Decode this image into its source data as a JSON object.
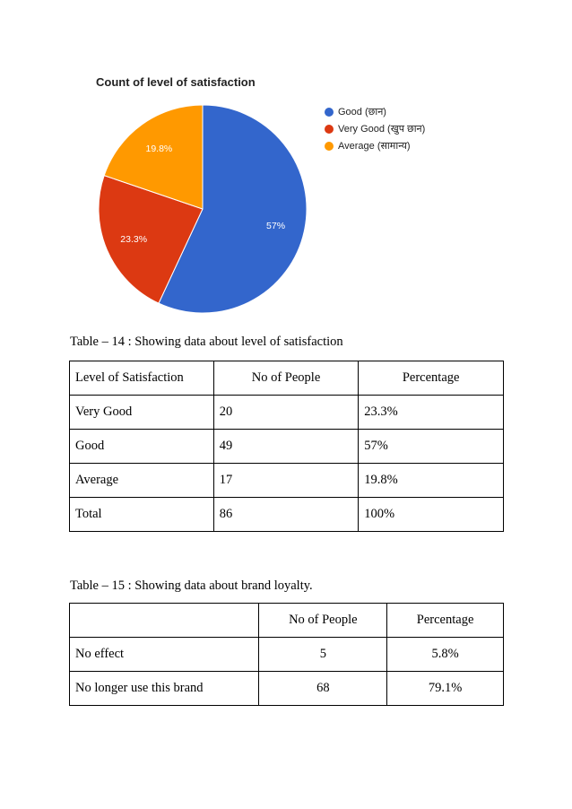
{
  "chart_data": {
    "type": "pie",
    "title": "Count of level of satisfaction",
    "slices": [
      {
        "label": "Good (छान)",
        "value": 57,
        "display": "57%",
        "color": "#3366cc"
      },
      {
        "label": "Very Good (खुप छान)",
        "value": 23.3,
        "display": "23.3%",
        "color": "#dc3912"
      },
      {
        "label": "Average (सामान्य)",
        "value": 19.8,
        "display": "19.8%",
        "color": "#ff9900"
      }
    ],
    "legend_position": "right"
  },
  "table14": {
    "caption": "Table – 14 : Showing data about level of satisfaction",
    "headers": [
      "Level of Satisfaction",
      "No of People",
      "Percentage"
    ],
    "rows": [
      [
        "Very Good",
        "20",
        "23.3%"
      ],
      [
        "Good",
        "49",
        "57%"
      ],
      [
        "Average",
        "17",
        "19.8%"
      ],
      [
        "Total",
        "86",
        "100%"
      ]
    ]
  },
  "table15": {
    "caption": "Table – 15 : Showing data about brand loyalty.",
    "headers": [
      "",
      "No of People",
      "Percentage"
    ],
    "rows": [
      [
        "No effect",
        "5",
        "5.8%"
      ],
      [
        "No longer use this brand",
        "68",
        "79.1%"
      ]
    ]
  }
}
